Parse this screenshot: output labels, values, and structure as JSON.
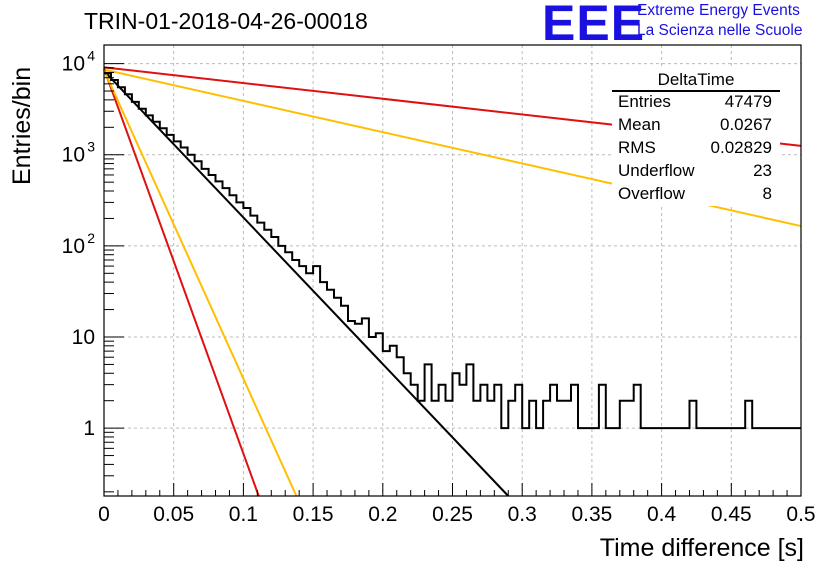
{
  "title": "TRIN-01-2018-04-26-00018",
  "logo": {
    "mark": "EEE",
    "line1": "Extreme Energy Events",
    "line2": "La Scienza nelle Scuole"
  },
  "colors": {
    "histogram": "#000000",
    "fit": "#000000",
    "red": "#e01010",
    "orange": "#ffbf00",
    "grid": "#bbbbbb",
    "logo": "#1a10e0"
  },
  "stats": {
    "title": "DeltaTime",
    "rows": [
      {
        "key": "Entries",
        "value": "47479"
      },
      {
        "key": "Mean",
        "value": "0.0267"
      },
      {
        "key": "RMS",
        "value": "0.02829"
      },
      {
        "key": "Underflow",
        "value": "23"
      },
      {
        "key": "Overflow",
        "value": "8"
      }
    ]
  },
  "chart_data": {
    "type": "histogram",
    "title": "TRIN-01-2018-04-26-00018",
    "xlabel": "Time difference [s]",
    "ylabel": "Entries/bin",
    "xlim": [
      0,
      0.5
    ],
    "ylim": [
      0.18,
      16000
    ],
    "yscale": "log",
    "grid": true,
    "x_ticks": [
      "0",
      "0.05",
      "0.1",
      "0.15",
      "0.2",
      "0.25",
      "0.3",
      "0.35",
      "0.4",
      "0.45",
      "0.5"
    ],
    "y_ticks": [
      {
        "base": "10",
        "exp": "4",
        "value": 10000
      },
      {
        "base": "10",
        "exp": "3",
        "value": 1000
      },
      {
        "base": "10",
        "exp": "2",
        "value": 100
      },
      {
        "base": "10",
        "exp": "",
        "value": 10
      },
      {
        "base": "1",
        "exp": "",
        "value": 1
      }
    ],
    "histogram": {
      "bin_width": 0.005,
      "counts": [
        7800,
        6600,
        5500,
        4600,
        3800,
        3200,
        2700,
        2300,
        1950,
        1650,
        1400,
        1200,
        1000,
        850,
        700,
        600,
        510,
        430,
        360,
        300,
        260,
        215,
        180,
        150,
        125,
        100,
        85,
        70,
        60,
        50,
        60,
        40,
        33,
        27,
        22,
        15,
        14,
        16,
        10,
        11,
        7,
        8,
        6,
        4,
        3,
        2,
        5,
        2,
        3,
        2,
        4,
        3,
        5,
        2,
        3,
        2,
        3,
        1,
        2,
        3,
        1,
        2,
        1,
        2,
        3,
        2,
        2,
        3,
        1,
        1,
        1,
        3,
        1,
        1,
        2,
        2,
        3,
        1,
        1,
        1,
        1,
        1,
        1,
        1,
        2,
        1,
        1,
        1,
        1,
        1,
        1,
        1,
        2,
        1,
        1,
        1,
        1,
        1,
        1,
        1
      ]
    },
    "lines": [
      {
        "name": "",
        "color": "#000000",
        "x0": 0,
        "y0": 8300,
        "x1": 0.29,
        "y1": 0.18
      },
      {
        "name": "",
        "color": "#e01010",
        "x0": 0,
        "y0": 9100,
        "x1": 0.5,
        "y1": 1250
      },
      {
        "name": "",
        "color": "#ffbf00",
        "x0": 0,
        "y0": 8600,
        "x1": 0.5,
        "y1": 165
      },
      {
        "name": "",
        "color": "#e01010",
        "x0": 0,
        "y0": 8800,
        "x1": 0.111,
        "y1": 0.18
      },
      {
        "name": "",
        "color": "#ffbf00",
        "x0": 0,
        "y0": 8500,
        "x1": 0.138,
        "y1": 0.18
      }
    ]
  }
}
